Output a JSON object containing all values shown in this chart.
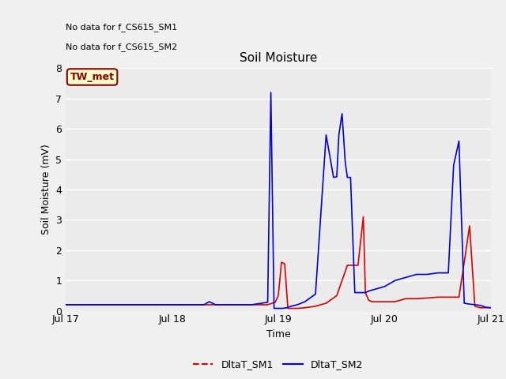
{
  "title": "Soil Moisture",
  "ylabel": "Soil Moisture (mV)",
  "xlabel": "Time",
  "ylim": [
    0.0,
    8.0
  ],
  "yticks": [
    0.0,
    1.0,
    2.0,
    3.0,
    4.0,
    5.0,
    6.0,
    7.0,
    8.0
  ],
  "xtick_labels": [
    "Jul 17",
    "Jul 18",
    "Jul 19",
    "Jul 20",
    "Jul 21"
  ],
  "annotations": [
    "No data for f_CS615_SM1",
    "No data for f_CS615_SM2"
  ],
  "legend_box_label": "TW_met",
  "legend_box_color": "#8b0000",
  "legend_box_fill": "#ffffcc",
  "background_color": "#f0f0f0",
  "plot_bg_color": "#ebebeb",
  "grid_color": "#ffffff",
  "sm1_color": "#dd0000",
  "sm2_color": "#0000dd",
  "sm1_label": "DltaT_SM1",
  "sm2_label": "DltaT_SM2",
  "sm1_x": [
    0.0,
    0.5,
    1.0,
    1.45,
    1.9,
    1.97,
    2.0,
    2.03,
    2.06,
    2.09,
    2.12,
    2.18,
    2.25,
    2.35,
    2.45,
    2.55,
    2.65,
    2.75,
    2.8,
    2.82,
    2.85,
    2.88,
    2.92,
    2.95,
    3.0,
    3.05,
    3.1,
    3.2,
    3.3,
    3.4,
    3.5,
    3.6,
    3.65,
    3.7,
    3.75,
    3.8,
    3.85,
    3.9,
    3.95,
    4.0
  ],
  "sm1_y": [
    0.2,
    0.2,
    0.2,
    0.2,
    0.2,
    0.28,
    0.5,
    1.6,
    1.55,
    0.08,
    0.08,
    0.08,
    0.1,
    0.15,
    0.25,
    0.5,
    1.5,
    1.5,
    3.1,
    0.6,
    0.35,
    0.3,
    0.3,
    0.3,
    0.3,
    0.3,
    0.3,
    0.4,
    0.4,
    0.42,
    0.45,
    0.45,
    0.45,
    0.45,
    1.6,
    2.8,
    0.15,
    0.1,
    0.1,
    0.1
  ],
  "sm2_x": [
    0.0,
    0.5,
    1.0,
    1.3,
    1.35,
    1.38,
    1.41,
    1.5,
    1.75,
    1.9,
    1.93,
    1.96,
    1.99,
    2.01,
    2.04,
    2.08,
    2.12,
    2.18,
    2.25,
    2.35,
    2.45,
    2.52,
    2.55,
    2.57,
    2.6,
    2.63,
    2.65,
    2.68,
    2.72,
    2.78,
    2.82,
    2.85,
    2.9,
    3.0,
    3.05,
    3.1,
    3.2,
    3.3,
    3.4,
    3.5,
    3.6,
    3.65,
    3.7,
    3.75,
    3.8,
    3.85,
    3.9,
    3.95,
    4.0
  ],
  "sm2_y": [
    0.2,
    0.2,
    0.2,
    0.2,
    0.3,
    0.25,
    0.2,
    0.2,
    0.2,
    0.28,
    7.2,
    0.08,
    0.08,
    0.08,
    0.08,
    0.1,
    0.15,
    0.2,
    0.3,
    0.55,
    5.8,
    4.4,
    4.42,
    5.8,
    6.5,
    4.9,
    4.4,
    4.4,
    0.6,
    0.6,
    0.6,
    0.65,
    0.7,
    0.8,
    0.9,
    1.0,
    1.1,
    1.2,
    1.2,
    1.25,
    1.25,
    4.8,
    5.6,
    0.25,
    0.22,
    0.2,
    0.18,
    0.12,
    0.1
  ]
}
